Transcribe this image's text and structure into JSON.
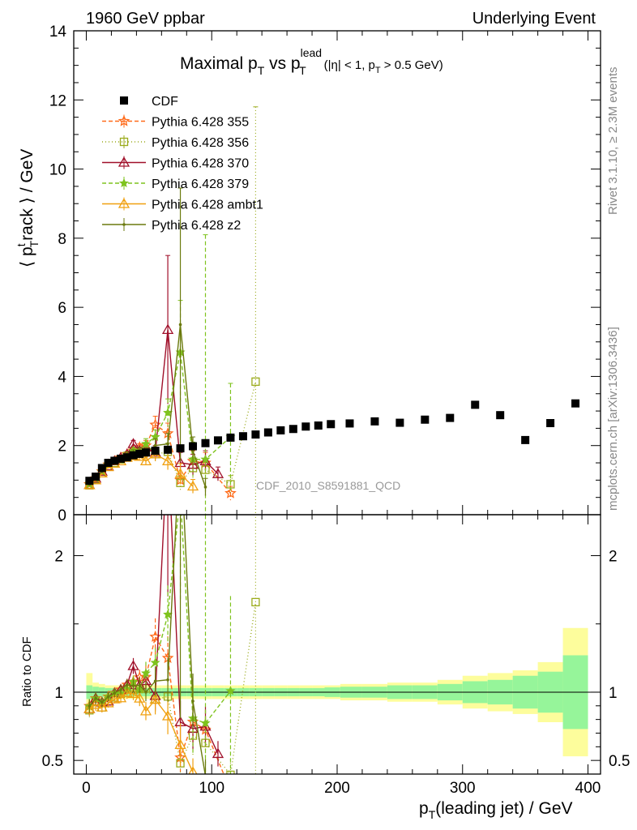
{
  "header": {
    "left": "1960 GeV ppbar",
    "right": "Underlying Event"
  },
  "side": {
    "rivet": "Rivet 3.1.10, ≥ 2.3M events",
    "mcplots": "mcplots.cern.ch [arXiv:1306.3436]"
  },
  "plot_title": {
    "main": "Maximal p",
    "sub_T": "T",
    "vs": " vs p",
    "sup_lead": "lead",
    "sub_T2": "T",
    "cond": "(|η| < 1, p",
    "cond_T": "T",
    "cond_end": " > 0.5 GeV)"
  },
  "watermark": "CDF_2010_S8591881_QCD",
  "axes": {
    "ylabel_pre": "⟨ p",
    "ylabel_sup": "t",
    "ylabel_sub": "T",
    "ylabel_post": "rack ⟩ / GeV",
    "ratio_ylabel": "Ratio to CDF",
    "xlabel_pre": "p",
    "xlabel_sub": "T",
    "xlabel_post": "(leading jet) / GeV"
  },
  "chart_data": {
    "type": "line",
    "xlim": [
      -10,
      410
    ],
    "ylim": [
      0,
      14
    ],
    "ratio_ylim": [
      0.4,
      2.3
    ],
    "x_ticks": [
      0,
      100,
      200,
      300,
      400
    ],
    "y_ticks": [
      0,
      2,
      4,
      6,
      8,
      10,
      12,
      14
    ],
    "ratio_ticks": [
      0.5,
      1,
      2
    ],
    "legend_position": "top-left",
    "data": {
      "name": "CDF",
      "x": [
        2.5,
        7.5,
        12.5,
        17.5,
        22.5,
        27.5,
        32.5,
        37.5,
        42.5,
        47.5,
        55,
        65,
        75,
        85,
        95,
        105,
        115,
        125,
        135,
        145,
        155,
        165,
        175,
        185,
        195,
        210,
        230,
        250,
        270,
        290,
        310,
        330,
        350,
        370,
        390
      ],
      "y": [
        0.98,
        1.1,
        1.35,
        1.5,
        1.56,
        1.62,
        1.66,
        1.72,
        1.76,
        1.8,
        1.85,
        1.88,
        1.92,
        1.98,
        2.07,
        2.15,
        2.23,
        2.27,
        2.32,
        2.38,
        2.44,
        2.48,
        2.55,
        2.58,
        2.62,
        2.64,
        2.7,
        2.66,
        2.75,
        2.8,
        3.18,
        2.88,
        2.16,
        2.65,
        3.22
      ],
      "rel_err_stat": [
        0.05,
        0.04,
        0.035,
        0.03,
        0.03,
        0.03,
        0.03,
        0.03,
        0.03,
        0.03,
        0.03,
        0.03,
        0.03,
        0.03,
        0.03,
        0.03,
        0.03,
        0.03,
        0.03,
        0.03,
        0.03,
        0.03,
        0.03,
        0.03,
        0.035,
        0.04,
        0.04,
        0.05,
        0.05,
        0.06,
        0.08,
        0.09,
        0.12,
        0.15,
        0.27
      ],
      "rel_err_tot": [
        0.14,
        0.07,
        0.06,
        0.05,
        0.05,
        0.05,
        0.05,
        0.05,
        0.05,
        0.05,
        0.05,
        0.05,
        0.05,
        0.05,
        0.05,
        0.05,
        0.05,
        0.05,
        0.05,
        0.05,
        0.05,
        0.05,
        0.05,
        0.05,
        0.05,
        0.06,
        0.06,
        0.07,
        0.07,
        0.09,
        0.12,
        0.14,
        0.16,
        0.22,
        0.47
      ]
    },
    "series": [
      {
        "name": "Pythia 6.428 355",
        "color": "#ff6b1a",
        "dash": "5,3",
        "marker": "star-open",
        "x": [
          2.5,
          7.5,
          12.5,
          17.5,
          22.5,
          27.5,
          32.5,
          37.5,
          42.5,
          47.5,
          55,
          65,
          75,
          85,
          95,
          115
        ],
        "y": [
          0.88,
          1.05,
          1.25,
          1.45,
          1.55,
          1.65,
          1.75,
          1.85,
          1.95,
          2.0,
          2.6,
          2.35,
          1.0,
          1.55,
          1.5,
          0.62
        ],
        "err": [
          0.05,
          0.05,
          0.05,
          0.05,
          0.05,
          0.06,
          0.07,
          0.08,
          0.1,
          0.15,
          0.25,
          0.3,
          0.2,
          0.3,
          0.3,
          0.2
        ]
      },
      {
        "name": "Pythia 6.428 356",
        "color": "#9aaa1a",
        "dash": "1,3",
        "marker": "square-open",
        "x": [
          2.5,
          7.5,
          12.5,
          17.5,
          22.5,
          27.5,
          32.5,
          37.5,
          42.5,
          47.5,
          55,
          65,
          75,
          85,
          95,
          115,
          135
        ],
        "y": [
          0.85,
          1.02,
          1.2,
          1.4,
          1.5,
          1.6,
          1.7,
          1.75,
          1.8,
          1.85,
          1.75,
          1.82,
          0.92,
          1.35,
          1.3,
          0.88,
          3.85
        ],
        "err": [
          0.05,
          0.05,
          0.05,
          0.05,
          0.05,
          0.06,
          0.06,
          0.07,
          0.08,
          0.1,
          0.2,
          0.25,
          0.2,
          0.3,
          0.3,
          0.25,
          7.95
        ]
      },
      {
        "name": "Pythia 6.428 370",
        "color": "#a0102a",
        "dash": "",
        "marker": "triangle-open",
        "x": [
          2.5,
          7.5,
          12.5,
          17.5,
          22.5,
          27.5,
          32.5,
          37.5,
          42.5,
          47.5,
          55,
          65,
          75,
          85,
          95,
          105
        ],
        "y": [
          0.86,
          1.05,
          1.25,
          1.4,
          1.55,
          1.65,
          1.75,
          2.05,
          1.85,
          1.95,
          1.8,
          5.35,
          1.5,
          1.45,
          1.55,
          1.18
        ],
        "err": [
          0.05,
          0.05,
          0.05,
          0.05,
          0.05,
          0.06,
          0.07,
          0.1,
          0.1,
          0.12,
          0.2,
          2.15,
          0.3,
          0.3,
          0.3,
          0.2
        ]
      },
      {
        "name": "Pythia 6.428 379",
        "color": "#7fc31e",
        "dash": "5,3",
        "marker": "star-filled",
        "x": [
          2.5,
          7.5,
          12.5,
          17.5,
          22.5,
          27.5,
          32.5,
          37.5,
          42.5,
          47.5,
          55,
          65,
          75,
          85,
          95,
          115
        ],
        "y": [
          0.88,
          1.05,
          1.25,
          1.45,
          1.55,
          1.6,
          1.7,
          1.85,
          1.8,
          2.05,
          2.25,
          2.95,
          4.7,
          1.6,
          1.6,
          2.25
        ],
        "err": [
          0.05,
          0.05,
          0.05,
          0.05,
          0.05,
          0.06,
          0.07,
          0.08,
          0.1,
          0.15,
          0.2,
          0.4,
          1.5,
          0.5,
          6.5,
          1.55
        ]
      },
      {
        "name": "Pythia 6.428 ambt1",
        "color": "#f0a010",
        "dash": "",
        "marker": "triangle-open",
        "x": [
          2.5,
          7.5,
          12.5,
          17.5,
          22.5,
          27.5,
          32.5,
          37.5,
          42.5,
          47.5,
          55,
          65,
          75,
          85
        ],
        "y": [
          0.86,
          1.0,
          1.2,
          1.38,
          1.48,
          1.55,
          1.65,
          1.7,
          1.68,
          1.55,
          1.75,
          1.55,
          1.18,
          0.82
        ],
        "err": [
          0.05,
          0.05,
          0.05,
          0.05,
          0.05,
          0.06,
          0.07,
          0.08,
          0.1,
          0.12,
          0.2,
          0.25,
          0.3,
          0.2
        ]
      },
      {
        "name": "Pythia 6.428 z2",
        "color": "#6b7a0e",
        "dash": "",
        "marker": "dot",
        "x": [
          2.5,
          7.5,
          12.5,
          17.5,
          22.5,
          27.5,
          32.5,
          37.5,
          42.5,
          47.5,
          55,
          65,
          75,
          85,
          95
        ],
        "y": [
          0.88,
          1.05,
          1.25,
          1.45,
          1.55,
          1.65,
          1.75,
          1.8,
          1.85,
          1.8,
          2.0,
          2.05,
          5.5,
          1.85,
          0.8
        ],
        "err": [
          0.05,
          0.05,
          0.05,
          0.05,
          0.05,
          0.06,
          0.07,
          0.08,
          0.1,
          0.12,
          0.2,
          0.3,
          3.95,
          0.4,
          0.25
        ]
      }
    ]
  }
}
